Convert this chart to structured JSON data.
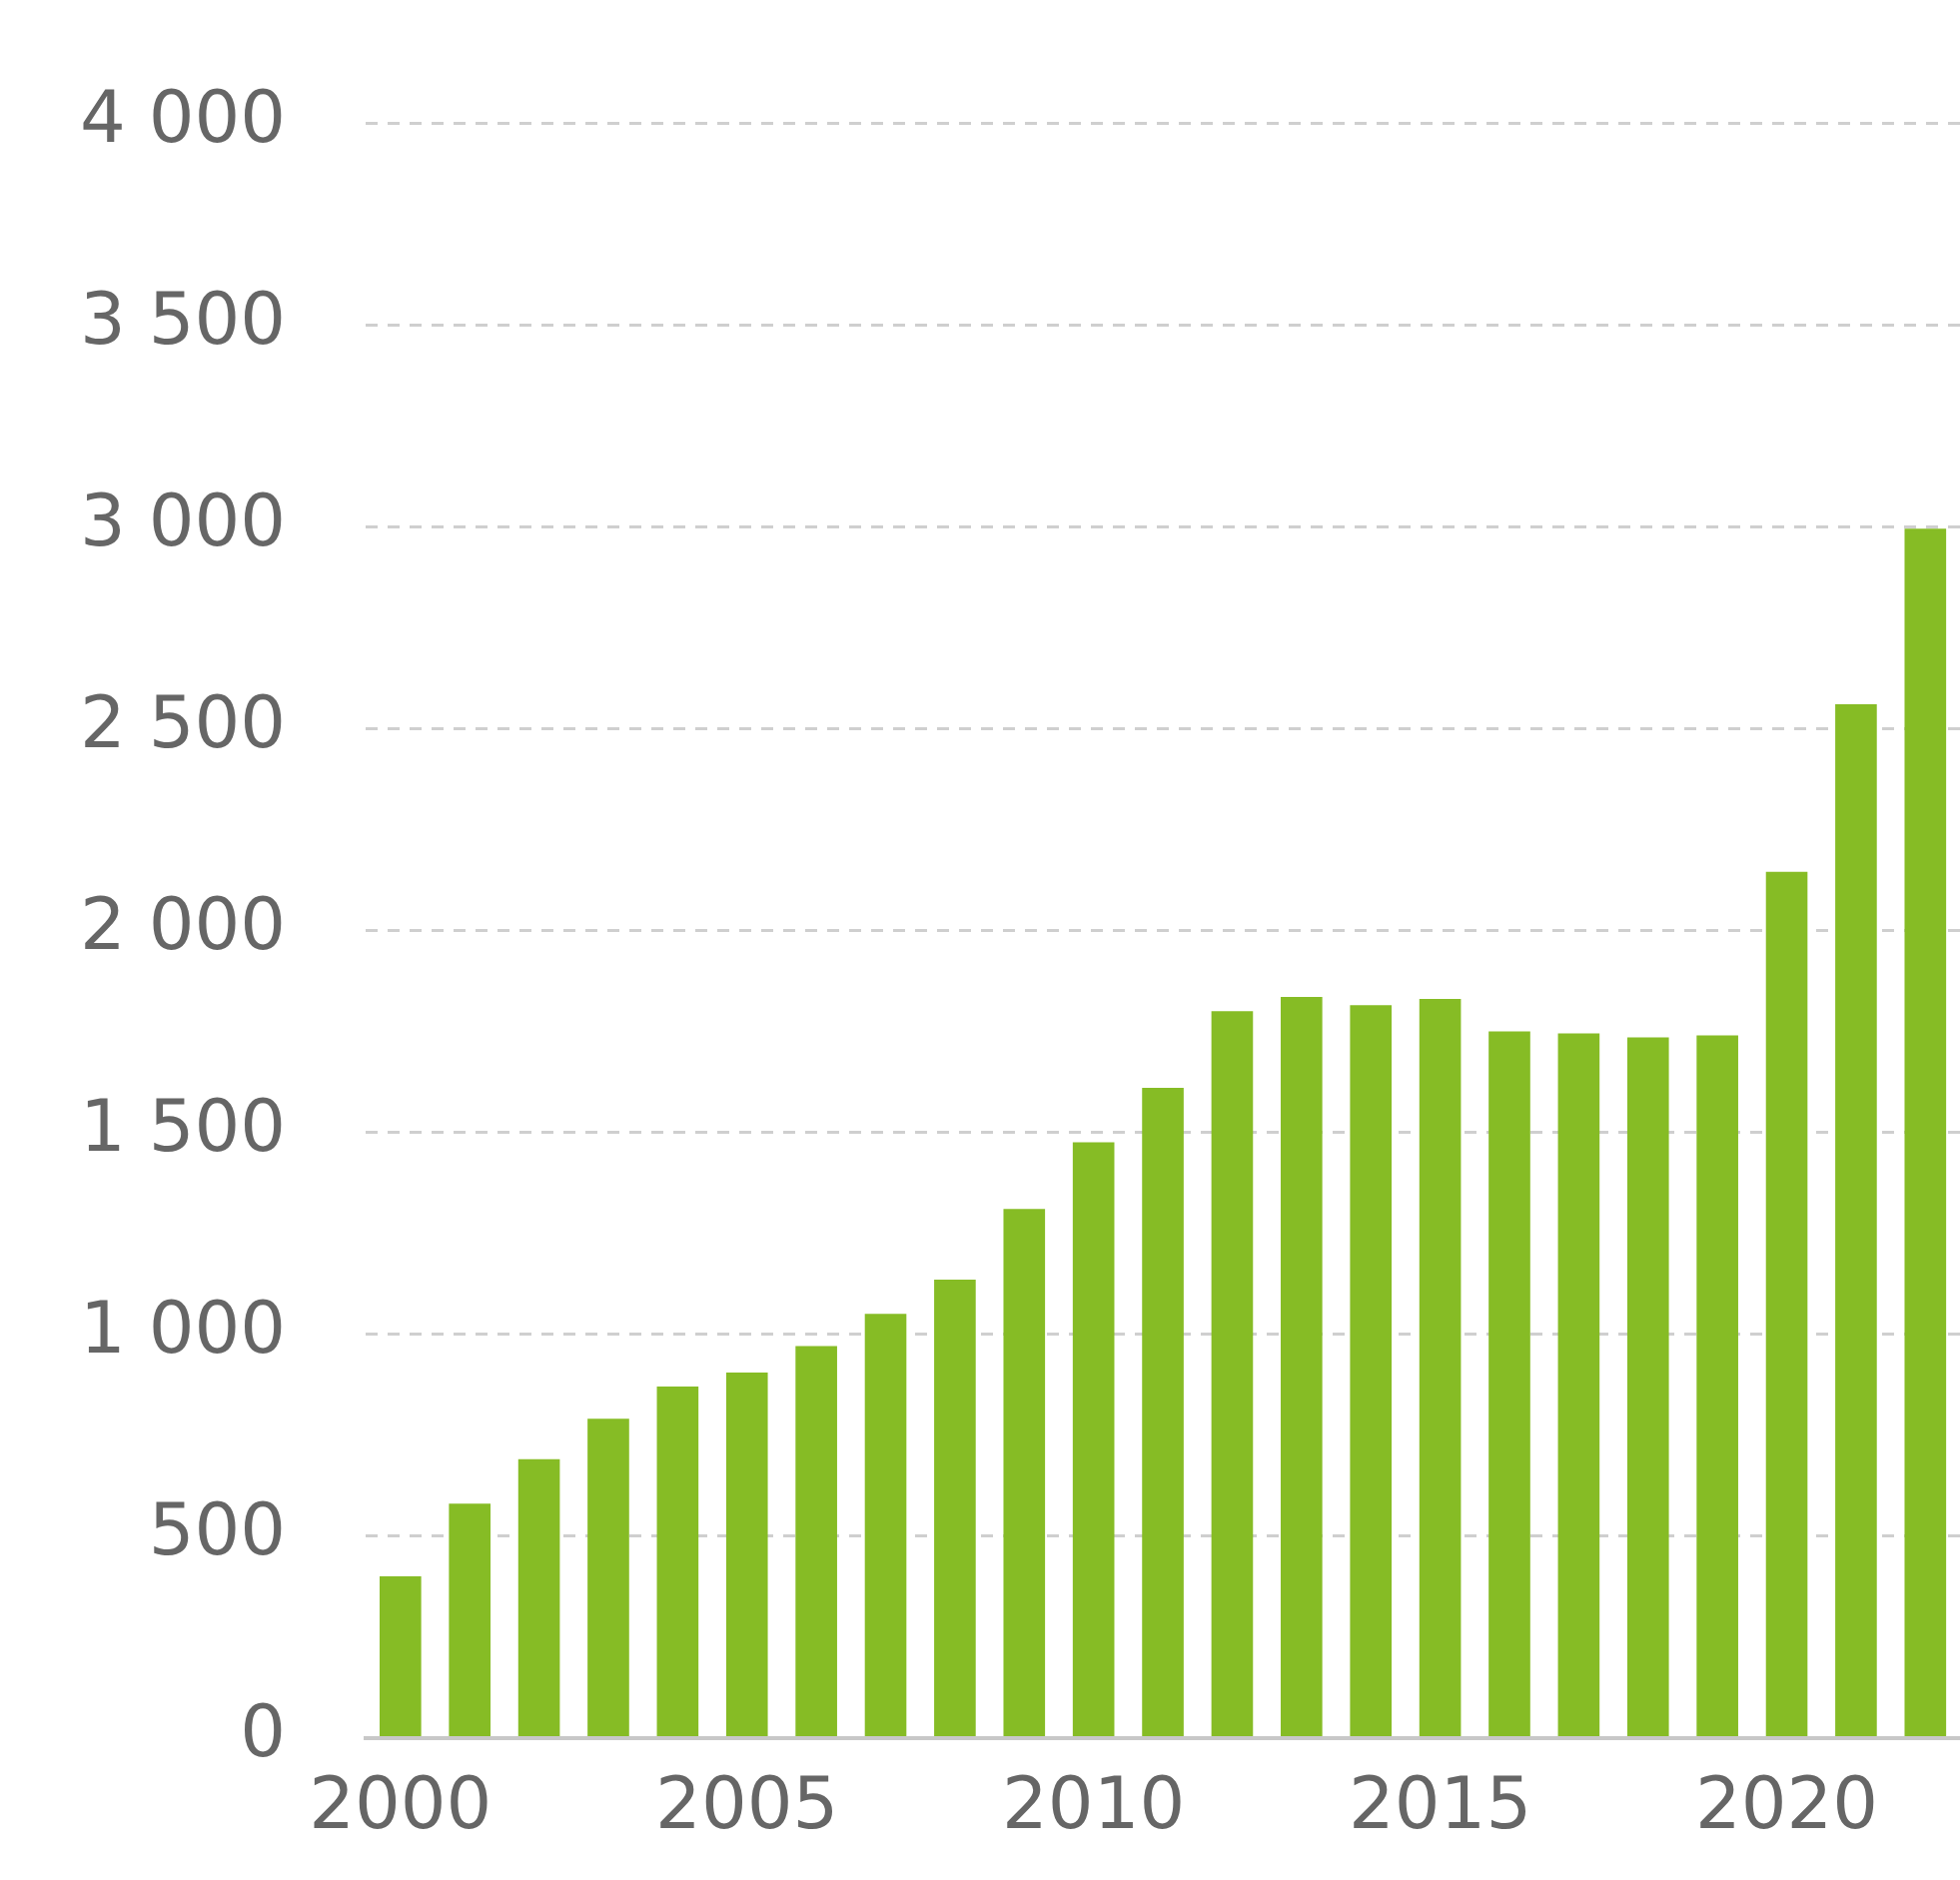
{
  "chart_data": {
    "type": "bar",
    "categories": [
      "2000",
      null,
      null,
      null,
      null,
      "2005",
      null,
      null,
      null,
      null,
      "2010",
      null,
      null,
      null,
      null,
      "2015",
      null,
      null,
      null,
      null,
      "2020",
      null,
      null
    ],
    "values": [
      400,
      580,
      690,
      790,
      870,
      905,
      970,
      1050,
      1135,
      1310,
      1475,
      1610,
      1800,
      1835,
      1815,
      1830,
      1750,
      1745,
      1735,
      1740,
      2145,
      2560,
      2995
    ],
    "color": "#86bc25",
    "ylim": [
      0,
      4000
    ],
    "yticks": [
      {
        "value": 0,
        "label": "0"
      },
      {
        "value": 500,
        "label": "500"
      },
      {
        "value": 1000,
        "label": "1 000"
      },
      {
        "value": 1500,
        "label": "1 500"
      },
      {
        "value": 2000,
        "label": "2 000"
      },
      {
        "value": 2500,
        "label": "2 500"
      },
      {
        "value": 3000,
        "label": "3 000"
      },
      {
        "value": 3500,
        "label": "3 500"
      },
      {
        "value": 4000,
        "label": "4 000"
      }
    ],
    "grid": "y",
    "legend": false
  }
}
